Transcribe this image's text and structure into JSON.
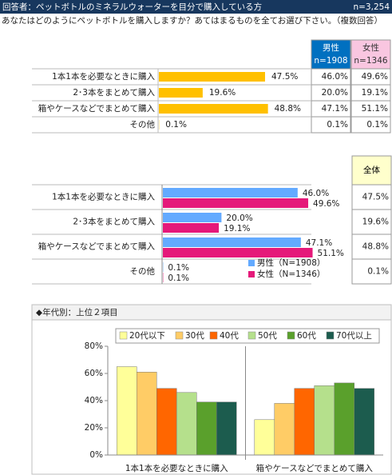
{
  "header": {
    "title": "回答者：ペットボトルのミネラルウォーターを目分で購入している方",
    "n": "n=3,254",
    "question": "あなたはどのようにペットボトルを購入しますか？あてはまるものを全てお選び下さい。（複数回答）"
  },
  "chart_data": [
    {
      "type": "bar",
      "orientation": "horizontal",
      "color": "#ffc000",
      "categories": [
        "1本1本を必要なときに購入",
        "2･3本をまとめて購入",
        "箱やケースなどでまとめて購入",
        "その他"
      ],
      "values": [
        47.5,
        19.6,
        48.8,
        0.1
      ],
      "value_labels": [
        "47.5%",
        "19.6%",
        "48.8%",
        "0.1%"
      ],
      "table": [
        {
          "header": "男性",
          "subheader": "n=1908",
          "color": "#0070c0",
          "text_color": "#ffffff",
          "cells": [
            "46.0%",
            "20.0%",
            "47.1%",
            "0.1%"
          ]
        },
        {
          "header": "女性",
          "subheader": "n=1346",
          "color": "#f9c6e0",
          "text_color": "#333333",
          "cells": [
            "49.6%",
            "19.1%",
            "51.1%",
            "0.1%"
          ]
        }
      ]
    },
    {
      "type": "bar",
      "orientation": "horizontal",
      "categories": [
        "1本1本を必要なときに購入",
        "2･3本をまとめて購入",
        "箱やケースなどでまとめて購入",
        "その他"
      ],
      "series": [
        {
          "name": "男性（N=1908）",
          "color": "#63aaff",
          "values": [
            46.0,
            20.0,
            47.1,
            0.1
          ],
          "value_labels": [
            "46.0%",
            "20.0%",
            "47.1%",
            "0.1%"
          ]
        },
        {
          "name": "女性（N=1346）",
          "color": "#e5197a",
          "values": [
            49.6,
            19.1,
            51.1,
            0.1
          ],
          "value_labels": [
            "49.6%",
            "19.1%",
            "51.1%",
            "0.1%"
          ]
        }
      ],
      "table": [
        {
          "header": "全体",
          "color": "#ffffcc",
          "text_color": "#000000",
          "cells": [
            "47.5%",
            "19.6%",
            "48.8%",
            "0.1%"
          ]
        }
      ]
    },
    {
      "type": "bar",
      "orientation": "vertical",
      "title": "◆年代別：上位２項目",
      "categories": [
        "1本1本を必要なときに購入",
        "箱やケースなどでまとめて購入"
      ],
      "series": [
        {
          "name": "20代以下",
          "color": "#ffff99",
          "values": [
            65,
            26
          ]
        },
        {
          "name": "30代",
          "color": "#ffcc66",
          "values": [
            61,
            38
          ]
        },
        {
          "name": "40代",
          "color": "#ff6600",
          "values": [
            49,
            49
          ]
        },
        {
          "name": "50代",
          "color": "#b5e08c",
          "values": [
            46,
            51
          ]
        },
        {
          "name": "60代",
          "color": "#5aa02c",
          "values": [
            39,
            53
          ]
        },
        {
          "name": "70代以上",
          "color": "#1c5c4e",
          "values": [
            39,
            49
          ]
        }
      ],
      "ylim": [
        0,
        80
      ],
      "yticks": [
        {
          "value": 0,
          "label": "0%"
        },
        {
          "value": 20,
          "label": "20%"
        },
        {
          "value": 40,
          "label": "40%"
        },
        {
          "value": 60,
          "label": "60%"
        },
        {
          "value": 80,
          "label": "80%"
        }
      ]
    }
  ]
}
